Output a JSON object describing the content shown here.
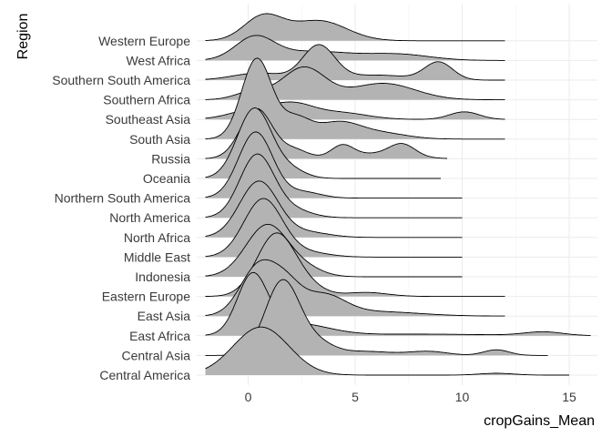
{
  "chart_data": {
    "type": "area",
    "subtype": "ridgeline",
    "title": "",
    "xlabel": "cropGains_Mean",
    "ylabel": "Region",
    "xlim": [
      -2.3,
      16.2
    ],
    "xticks": [
      0,
      5,
      10,
      15
    ],
    "grid": true,
    "legend": "none",
    "fill_color": "#b3b3b3",
    "line_color": "#000000",
    "grid_color": "#ebebeb",
    "categories": [
      "Central America",
      "Central Asia",
      "East Africa",
      "East Asia",
      "Eastern Europe",
      "Indonesia",
      "Middle East",
      "North Africa",
      "North America",
      "Northern South America",
      "Oceania",
      "Russia",
      "South Asia",
      "Southeast Asia",
      "Southern Africa",
      "Southern South America",
      "West Africa",
      "Western Europe"
    ],
    "series": [
      {
        "category": "Central America",
        "range": [
          -2,
          15
        ],
        "peaks": [
          {
            "mu": 0.6,
            "sd": 1.3,
            "h": 2.4
          },
          {
            "mu": 11.6,
            "sd": 0.8,
            "h": 0.09
          }
        ]
      },
      {
        "category": "Central Asia",
        "range": [
          -2,
          14
        ],
        "peaks": [
          {
            "mu": 1.6,
            "sd": 0.8,
            "h": 3.7
          },
          {
            "mu": 3.2,
            "sd": 0.8,
            "h": 0.6
          },
          {
            "mu": 5.5,
            "sd": 1.2,
            "h": 0.2
          },
          {
            "mu": 8.4,
            "sd": 0.9,
            "h": 0.2
          },
          {
            "mu": 11.6,
            "sd": 0.6,
            "h": 0.28
          }
        ]
      },
      {
        "category": "East Africa",
        "range": [
          -2,
          16
        ],
        "peaks": [
          {
            "mu": 0.2,
            "sd": 0.7,
            "h": 2.9
          },
          {
            "mu": 2.2,
            "sd": 1.5,
            "h": 0.6
          },
          {
            "mu": 8.0,
            "sd": 3.5,
            "h": 0.08
          },
          {
            "mu": 13.8,
            "sd": 0.9,
            "h": 0.18
          }
        ]
      },
      {
        "category": "East Asia",
        "range": [
          -2,
          12
        ],
        "peaks": [
          {
            "mu": 0.5,
            "sd": 0.85,
            "h": 2.5
          },
          {
            "mu": 1.8,
            "sd": 0.7,
            "h": 1.2
          },
          {
            "mu": 3.5,
            "sd": 1.0,
            "h": 1.0
          },
          {
            "mu": 6.0,
            "sd": 2.0,
            "h": 0.22
          }
        ]
      },
      {
        "category": "Eastern Europe",
        "range": [
          -2,
          12
        ],
        "peaks": [
          {
            "mu": 1.3,
            "sd": 0.9,
            "h": 3.1
          },
          {
            "mu": 2.8,
            "sd": 0.8,
            "h": 0.4
          },
          {
            "mu": 5.5,
            "sd": 1.0,
            "h": 0.2
          }
        ]
      },
      {
        "category": "Indonesia",
        "range": [
          -2,
          10
        ],
        "peaks": [
          {
            "mu": 0.9,
            "sd": 1.0,
            "h": 2.6
          },
          {
            "mu": 2.8,
            "sd": 0.8,
            "h": 0.3
          }
        ]
      },
      {
        "category": "Middle East",
        "range": [
          -2,
          10
        ],
        "peaks": [
          {
            "mu": 0.7,
            "sd": 0.9,
            "h": 2.9
          },
          {
            "mu": 2.8,
            "sd": 1.0,
            "h": 0.22
          }
        ]
      },
      {
        "category": "North Africa",
        "range": [
          -2,
          10
        ],
        "peaks": [
          {
            "mu": 0.5,
            "sd": 0.9,
            "h": 2.8
          },
          {
            "mu": 2.8,
            "sd": 1.0,
            "h": 0.25
          }
        ]
      },
      {
        "category": "North America",
        "range": [
          -2,
          10
        ],
        "peaks": [
          {
            "mu": 0.4,
            "sd": 0.8,
            "h": 3.1
          },
          {
            "mu": 2.0,
            "sd": 0.9,
            "h": 0.4
          }
        ]
      },
      {
        "category": "Northern South America",
        "range": [
          -2,
          10
        ],
        "peaks": [
          {
            "mu": 0.35,
            "sd": 0.8,
            "h": 3.3
          },
          {
            "mu": 2.6,
            "sd": 0.8,
            "h": 0.3
          }
        ]
      },
      {
        "category": "Oceania",
        "range": [
          -2,
          9
        ],
        "peaks": [
          {
            "mu": 0.3,
            "sd": 0.8,
            "h": 3.5
          },
          {
            "mu": 2.0,
            "sd": 0.7,
            "h": 0.4
          }
        ]
      },
      {
        "category": "Russia",
        "range": [
          -2,
          9.3
        ],
        "peaks": [
          {
            "mu": 0.4,
            "sd": 0.75,
            "h": 2.5
          },
          {
            "mu": 2.2,
            "sd": 0.6,
            "h": 0.4
          },
          {
            "mu": 4.4,
            "sd": 0.5,
            "h": 0.55
          },
          {
            "mu": 7.2,
            "sd": 0.6,
            "h": 0.6
          },
          {
            "mu": 5.8,
            "sd": 1.5,
            "h": 0.25
          }
        ]
      },
      {
        "category": "South Asia",
        "range": [
          -2,
          12
        ],
        "peaks": [
          {
            "mu": 0.4,
            "sd": 0.7,
            "h": 4.0
          },
          {
            "mu": 2.2,
            "sd": 0.7,
            "h": 1.0
          },
          {
            "mu": 4.2,
            "sd": 1.0,
            "h": 0.8
          },
          {
            "mu": 6.2,
            "sd": 1.2,
            "h": 0.3
          }
        ]
      },
      {
        "category": "Southeast Asia",
        "range": [
          -2,
          12
        ],
        "peaks": [
          {
            "mu": 0.5,
            "sd": 1.2,
            "h": 0.55
          },
          {
            "mu": 2.2,
            "sd": 0.9,
            "h": 0.55
          },
          {
            "mu": 4.2,
            "sd": 1.3,
            "h": 0.35
          },
          {
            "mu": 10.1,
            "sd": 0.7,
            "h": 0.38
          }
        ]
      },
      {
        "category": "Southern Africa",
        "range": [
          -2,
          12
        ],
        "peaks": [
          {
            "mu": 0.2,
            "sd": 0.8,
            "h": 0.4
          },
          {
            "mu": 2.6,
            "sd": 1.0,
            "h": 1.6
          },
          {
            "mu": 6.3,
            "sd": 1.5,
            "h": 0.82
          }
        ]
      },
      {
        "category": "Southern South America",
        "range": [
          -2,
          12
        ],
        "peaks": [
          {
            "mu": 0.5,
            "sd": 1.2,
            "h": 0.35
          },
          {
            "mu": 3.3,
            "sd": 0.75,
            "h": 1.7
          },
          {
            "mu": 8.9,
            "sd": 0.65,
            "h": 0.88
          },
          {
            "mu": 6.0,
            "sd": 1.5,
            "h": 0.25
          }
        ]
      },
      {
        "category": "West Africa",
        "range": [
          -2,
          12
        ],
        "peaks": [
          {
            "mu": 0.3,
            "sd": 0.9,
            "h": 1.1
          },
          {
            "mu": 3.0,
            "sd": 1.8,
            "h": 0.45
          },
          {
            "mu": 7.0,
            "sd": 1.5,
            "h": 0.3
          }
        ]
      },
      {
        "category": "Western Europe",
        "range": [
          -2,
          12
        ],
        "peaks": [
          {
            "mu": 0.7,
            "sd": 0.9,
            "h": 1.2
          },
          {
            "mu": 3.3,
            "sd": 1.3,
            "h": 1.0
          }
        ]
      }
    ]
  }
}
